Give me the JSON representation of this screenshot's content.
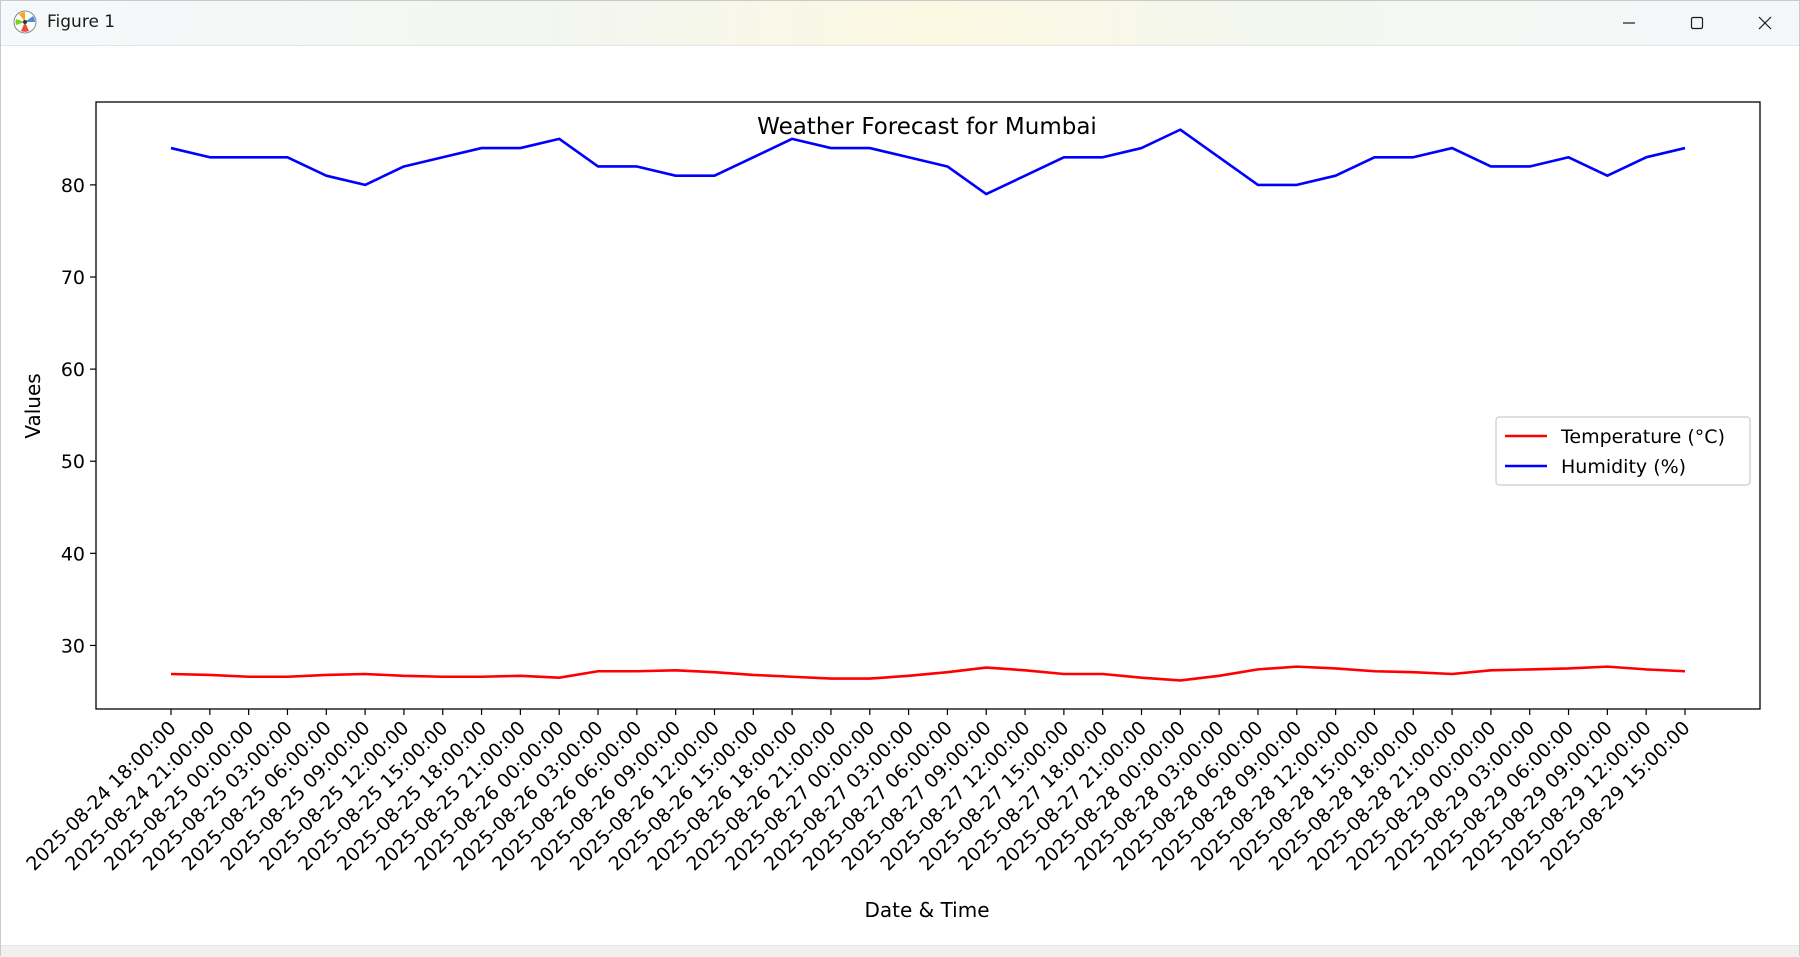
{
  "window": {
    "title": "Figure 1",
    "icon": "matplotlib-icon",
    "controls": [
      "minimize-icon",
      "maximize-icon",
      "close-icon"
    ]
  },
  "chart_data": {
    "type": "line",
    "title": "Weather Forecast for Mumbai",
    "xlabel": "Date & Time",
    "ylabel": "Values",
    "categories": [
      "2025-08-24 18:00:00",
      "2025-08-24 21:00:00",
      "2025-08-25 00:00:00",
      "2025-08-25 03:00:00",
      "2025-08-25 06:00:00",
      "2025-08-25 09:00:00",
      "2025-08-25 12:00:00",
      "2025-08-25 15:00:00",
      "2025-08-25 18:00:00",
      "2025-08-25 21:00:00",
      "2025-08-26 00:00:00",
      "2025-08-26 03:00:00",
      "2025-08-26 06:00:00",
      "2025-08-26 09:00:00",
      "2025-08-26 12:00:00",
      "2025-08-26 15:00:00",
      "2025-08-26 18:00:00",
      "2025-08-26 21:00:00",
      "2025-08-27 00:00:00",
      "2025-08-27 03:00:00",
      "2025-08-27 06:00:00",
      "2025-08-27 09:00:00",
      "2025-08-27 12:00:00",
      "2025-08-27 15:00:00",
      "2025-08-27 18:00:00",
      "2025-08-27 21:00:00",
      "2025-08-28 00:00:00",
      "2025-08-28 03:00:00",
      "2025-08-28 06:00:00",
      "2025-08-28 09:00:00",
      "2025-08-28 12:00:00",
      "2025-08-28 15:00:00",
      "2025-08-28 18:00:00",
      "2025-08-28 21:00:00",
      "2025-08-29 00:00:00",
      "2025-08-29 03:00:00",
      "2025-08-29 06:00:00",
      "2025-08-29 09:00:00",
      "2025-08-29 12:00:00",
      "2025-08-29 15:00:00"
    ],
    "series": [
      {
        "name": "Temperature (°C)",
        "color": "#ff0000",
        "values": [
          26.9,
          26.8,
          26.6,
          26.6,
          26.8,
          26.9,
          26.7,
          26.6,
          26.6,
          26.7,
          26.5,
          27.2,
          27.2,
          27.3,
          27.1,
          26.8,
          26.6,
          26.4,
          26.4,
          26.7,
          27.1,
          27.6,
          27.3,
          26.9,
          26.9,
          26.5,
          26.2,
          26.7,
          27.4,
          27.7,
          27.5,
          27.2,
          27.1,
          26.9,
          27.3,
          27.4,
          27.5,
          27.7,
          27.4,
          27.2
        ]
      },
      {
        "name": "Humidity (%)",
        "color": "#0000ff",
        "values": [
          84,
          83,
          83,
          83,
          81,
          80,
          82,
          83,
          84,
          84,
          85,
          82,
          82,
          81,
          81,
          83,
          85,
          84,
          84,
          83,
          82,
          79,
          81,
          83,
          83,
          84,
          86,
          83,
          80,
          80,
          81,
          83,
          83,
          84,
          82,
          82,
          83,
          81,
          83,
          84
        ]
      }
    ],
    "yticks": [
      30,
      40,
      50,
      60,
      70,
      80
    ],
    "ylim": [
      23.1,
      89.0
    ],
    "grid": false,
    "legend_position": "center-right"
  }
}
